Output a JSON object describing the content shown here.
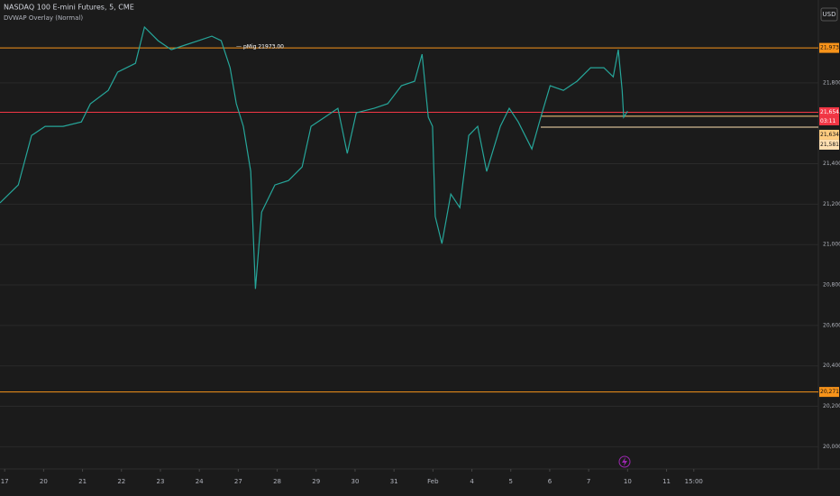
{
  "chart_data": {
    "type": "line",
    "title": "NASDAQ 100 E-mini Futures, 5, CME",
    "subtitle": "DVWAP Overlay (Normal)",
    "currency": "USD",
    "annotation": "pMig 21973.00",
    "countdown": "03:11",
    "series": [
      {
        "color": "#26a69a",
        "x": [
          -0.12,
          0.35,
          0.69,
          1.04,
          1.5,
          1.97,
          2.2,
          2.66,
          2.9,
          3.36,
          3.59,
          3.94,
          4.28,
          4.63,
          4.98,
          5.32,
          5.56,
          5.79,
          5.95,
          6.13,
          6.32,
          6.44,
          6.6,
          6.94,
          7.29,
          7.64,
          7.87,
          8.22,
          8.56,
          8.8,
          9.03,
          9.49,
          9.84,
          10.19,
          10.53,
          10.72,
          10.88,
          10.99,
          11.06,
          11.23,
          11.46,
          11.69,
          11.92,
          12.15,
          12.38,
          12.73,
          12.96,
          13.19,
          13.54,
          13.77,
          14.01,
          14.35,
          14.7,
          15.05,
          15.39,
          15.63,
          15.76,
          15.86,
          15.9,
          16.0
        ],
        "values": [
          21206,
          21295,
          21540,
          21585,
          21585,
          21607,
          21696,
          21763,
          21853,
          21897,
          22076,
          22009,
          21964,
          21987,
          22009,
          22031,
          22009,
          21875,
          21697,
          21585,
          21362,
          20781,
          21161,
          21295,
          21317,
          21384,
          21585,
          21630,
          21674,
          21451,
          21652,
          21674,
          21697,
          21786,
          21808,
          21942,
          21630,
          21585,
          21139,
          21005,
          21250,
          21183,
          21540,
          21585,
          21362,
          21585,
          21674,
          21607,
          21473,
          21630,
          21786,
          21763,
          21808,
          21875,
          21875,
          21830,
          21964,
          21763,
          21630,
          21660
        ]
      }
    ],
    "levels": [
      {
        "value": 21973,
        "label": "21,973.00",
        "color": "#f7931a",
        "start": -0.12
      },
      {
        "value": 21654.75,
        "label": "21,654.75",
        "color": "#f23645",
        "start": -0.12
      },
      {
        "value": 21634.75,
        "label": "21,634.75",
        "color": "#ffcc80",
        "start": 13.77
      },
      {
        "value": 21581,
        "label": "21,581.00",
        "color": "#ffe0b2",
        "start": 13.77
      },
      {
        "value": 20271,
        "label": "20,271.00",
        "color": "#f7931a",
        "start": -0.12
      }
    ],
    "xlim": [
      -0.12,
      20.9
    ],
    "ylim": [
      19890,
      22210
    ],
    "xticks": [
      {
        "value": 0,
        "label": "17"
      },
      {
        "value": 1,
        "label": "20"
      },
      {
        "value": 2,
        "label": "21"
      },
      {
        "value": 3,
        "label": "22"
      },
      {
        "value": 4,
        "label": "23"
      },
      {
        "value": 5,
        "label": "24"
      },
      {
        "value": 6,
        "label": "27"
      },
      {
        "value": 7,
        "label": "28"
      },
      {
        "value": 8,
        "label": "29"
      },
      {
        "value": 9,
        "label": "30"
      },
      {
        "value": 10,
        "label": "31"
      },
      {
        "value": 11,
        "label": "Feb"
      },
      {
        "value": 12,
        "label": "4"
      },
      {
        "value": 13,
        "label": "5"
      },
      {
        "value": 14,
        "label": "6"
      },
      {
        "value": 15,
        "label": "7"
      },
      {
        "value": 16,
        "label": "10"
      },
      {
        "value": 17,
        "label": "11"
      },
      {
        "value": 17.7,
        "label": "15:00"
      }
    ],
    "yticks": [
      {
        "value": 20000,
        "label": "20,000.00"
      },
      {
        "value": 20200,
        "label": "20,200.00"
      },
      {
        "value": 20400,
        "label": "20,400.00"
      },
      {
        "value": 20600,
        "label": "20,600.00"
      },
      {
        "value": 20800,
        "label": "20,800.00"
      },
      {
        "value": 21000,
        "label": "21,000.00"
      },
      {
        "value": 21200,
        "label": "21,200.00"
      },
      {
        "value": 21400,
        "label": "21,400.00"
      },
      {
        "value": 21800,
        "label": "21,800.00"
      }
    ],
    "grid": true
  }
}
